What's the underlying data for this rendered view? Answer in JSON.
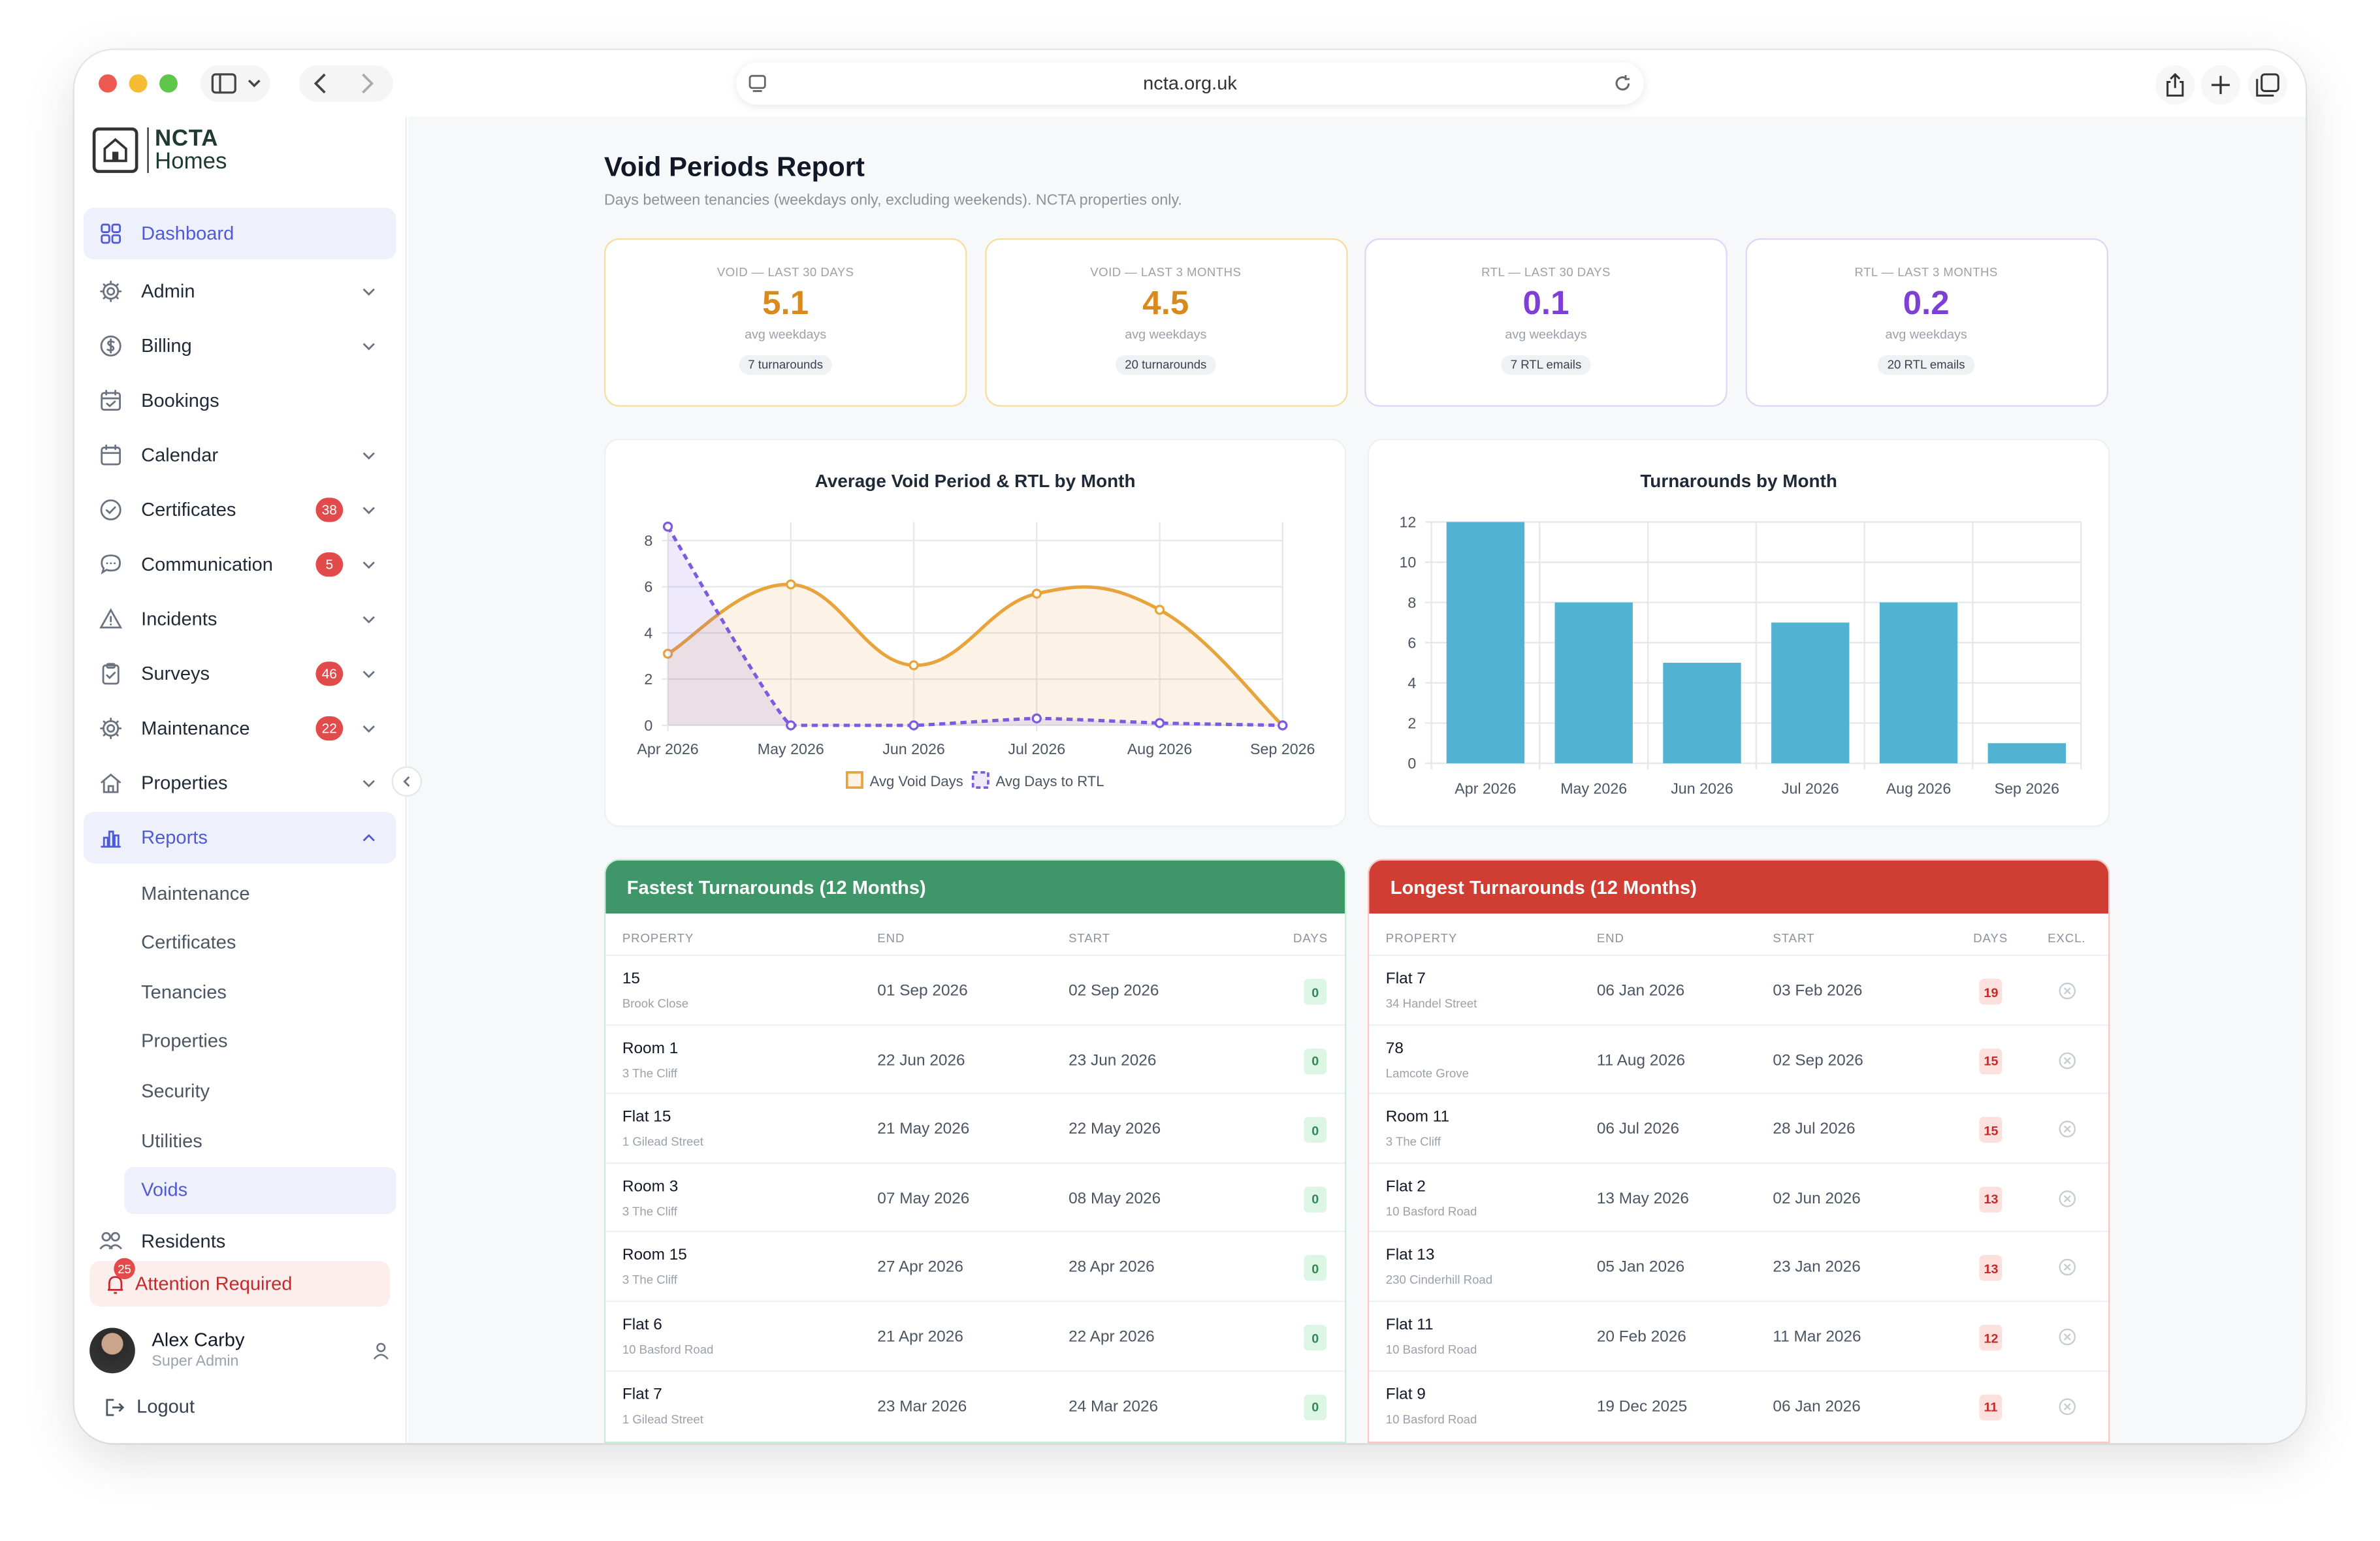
{
  "browser": {
    "url": "ncta.org.uk"
  },
  "logo": {
    "line1": "NCTA",
    "line2": "Homes"
  },
  "nav": [
    {
      "label": "Dashboard",
      "icon": "dashboard-grid-icon",
      "active": true
    },
    {
      "label": "Admin",
      "icon": "gear-icon",
      "chevron": "down"
    },
    {
      "label": "Billing",
      "icon": "dollar-icon",
      "chevron": "down"
    },
    {
      "label": "Bookings",
      "icon": "calendar-check-icon"
    },
    {
      "label": "Calendar",
      "icon": "calendar-icon",
      "chevron": "down"
    },
    {
      "label": "Certificates",
      "icon": "check-circle-icon",
      "badge": "38",
      "chevron": "down"
    },
    {
      "label": "Communication",
      "icon": "chat-icon",
      "badge": "5",
      "chevron": "down"
    },
    {
      "label": "Incidents",
      "icon": "warning-icon",
      "chevron": "down"
    },
    {
      "label": "Surveys",
      "icon": "clipboard-icon",
      "badge": "46",
      "chevron": "down"
    },
    {
      "label": "Maintenance",
      "icon": "gear-icon",
      "badge": "22",
      "chevron": "down"
    },
    {
      "label": "Properties",
      "icon": "home-icon",
      "chevron": "down"
    },
    {
      "label": "Reports",
      "icon": "bar-chart-icon",
      "chevron": "up",
      "highlight": true
    }
  ],
  "subnav": [
    {
      "label": "Maintenance"
    },
    {
      "label": "Certificates"
    },
    {
      "label": "Tenancies"
    },
    {
      "label": "Properties"
    },
    {
      "label": "Security"
    },
    {
      "label": "Utilities"
    },
    {
      "label": "Voids",
      "active": true
    }
  ],
  "residents": "Residents",
  "attention": {
    "label": "Attention Required",
    "count": "25"
  },
  "user": {
    "name": "Alex Carby",
    "role": "Super Admin"
  },
  "logout": "Logout",
  "page": {
    "title": "Void Periods Report",
    "subtitle": "Days between tenancies (weekdays only, excluding weekends). NCTA properties only."
  },
  "kpis": [
    {
      "label": "VOID — LAST 30 DAYS",
      "value": "5.1",
      "sub": "avg weekdays",
      "pill": "7 turnarounds",
      "color": "#d98a1f",
      "border": "#f6dea0"
    },
    {
      "label": "VOID — LAST 3 MONTHS",
      "value": "4.5",
      "sub": "avg weekdays",
      "pill": "20 turnarounds",
      "color": "#d98a1f",
      "border": "#f6dea0"
    },
    {
      "label": "RTL — LAST 30 DAYS",
      "value": "0.1",
      "sub": "avg weekdays",
      "pill": "7 RTL emails",
      "color": "#7e3fd6",
      "border": "#e2d6f6"
    },
    {
      "label": "RTL — LAST 3 MONTHS",
      "value": "0.2",
      "sub": "avg weekdays",
      "pill": "20 RTL emails",
      "color": "#7e3fd6",
      "border": "#e2d6f6"
    }
  ],
  "chart_data": [
    {
      "type": "line",
      "title": "Average Void Period & RTL by Month",
      "categories": [
        "Apr 2026",
        "May 2026",
        "Jun 2026",
        "Jul 2026",
        "Aug 2026",
        "Sep 2026"
      ],
      "series": [
        {
          "name": "Avg Void Days",
          "values": [
            3.1,
            6.1,
            2.6,
            5.7,
            5.0,
            0
          ],
          "color": "#e8a33a"
        },
        {
          "name": "Avg Days to RTL",
          "values": [
            8.6,
            0,
            0,
            0.3,
            0.1,
            0
          ],
          "color": "#7d5be0"
        }
      ],
      "ylim": [
        0,
        8.8
      ],
      "yticks": [
        0,
        2,
        4,
        6,
        8
      ],
      "legend": "bottom",
      "grid": true
    },
    {
      "type": "bar",
      "title": "Turnarounds by Month",
      "categories": [
        "Apr 2026",
        "May 2026",
        "Jun 2026",
        "Jul 2026",
        "Aug 2026",
        "Sep 2026"
      ],
      "values": [
        12,
        8,
        5,
        7,
        8,
        1
      ],
      "color": "#52b2d1",
      "ylim": [
        0,
        12
      ],
      "yticks": [
        0,
        2,
        4,
        6,
        8,
        10,
        12
      ],
      "grid": true
    }
  ],
  "fastest": {
    "title": "Fastest Turnarounds (12 Months)",
    "columns": [
      "PROPERTY",
      "END",
      "START",
      "DAYS"
    ],
    "rows": [
      {
        "name": "15",
        "addr": "Brook Close",
        "end": "01 Sep 2026",
        "start": "02 Sep 2026",
        "days": "0"
      },
      {
        "name": "Room 1",
        "addr": "3 The Cliff",
        "end": "22 Jun 2026",
        "start": "23 Jun 2026",
        "days": "0"
      },
      {
        "name": "Flat 15",
        "addr": "1 Gilead Street",
        "end": "21 May 2026",
        "start": "22 May 2026",
        "days": "0"
      },
      {
        "name": "Room 3",
        "addr": "3 The Cliff",
        "end": "07 May 2026",
        "start": "08 May 2026",
        "days": "0"
      },
      {
        "name": "Room 15",
        "addr": "3 The Cliff",
        "end": "27 Apr 2026",
        "start": "28 Apr 2026",
        "days": "0"
      },
      {
        "name": "Flat 6",
        "addr": "10 Basford Road",
        "end": "21 Apr 2026",
        "start": "22 Apr 2026",
        "days": "0"
      },
      {
        "name": "Flat 7",
        "addr": "1 Gilead Street",
        "end": "23 Mar 2026",
        "start": "24 Mar 2026",
        "days": "0"
      }
    ]
  },
  "longest": {
    "title": "Longest Turnarounds (12 Months)",
    "columns": [
      "PROPERTY",
      "END",
      "START",
      "DAYS",
      "EXCL."
    ],
    "rows": [
      {
        "name": "Flat 7",
        "addr": "34 Handel Street",
        "end": "06 Jan 2026",
        "start": "03 Feb 2026",
        "days": "19"
      },
      {
        "name": "78",
        "addr": "Lamcote Grove",
        "end": "11 Aug 2026",
        "start": "02 Sep 2026",
        "days": "15"
      },
      {
        "name": "Room 11",
        "addr": "3 The Cliff",
        "end": "06 Jul 2026",
        "start": "28 Jul 2026",
        "days": "15"
      },
      {
        "name": "Flat 2",
        "addr": "10 Basford Road",
        "end": "13 May 2026",
        "start": "02 Jun 2026",
        "days": "13"
      },
      {
        "name": "Flat 13",
        "addr": "230 Cinderhill Road",
        "end": "05 Jan 2026",
        "start": "23 Jan 2026",
        "days": "13"
      },
      {
        "name": "Flat 11",
        "addr": "10 Basford Road",
        "end": "20 Feb 2026",
        "start": "11 Mar 2026",
        "days": "12"
      },
      {
        "name": "Flat 9",
        "addr": "10 Basford Road",
        "end": "19 Dec 2025",
        "start": "06 Jan 2026",
        "days": "11"
      }
    ]
  }
}
